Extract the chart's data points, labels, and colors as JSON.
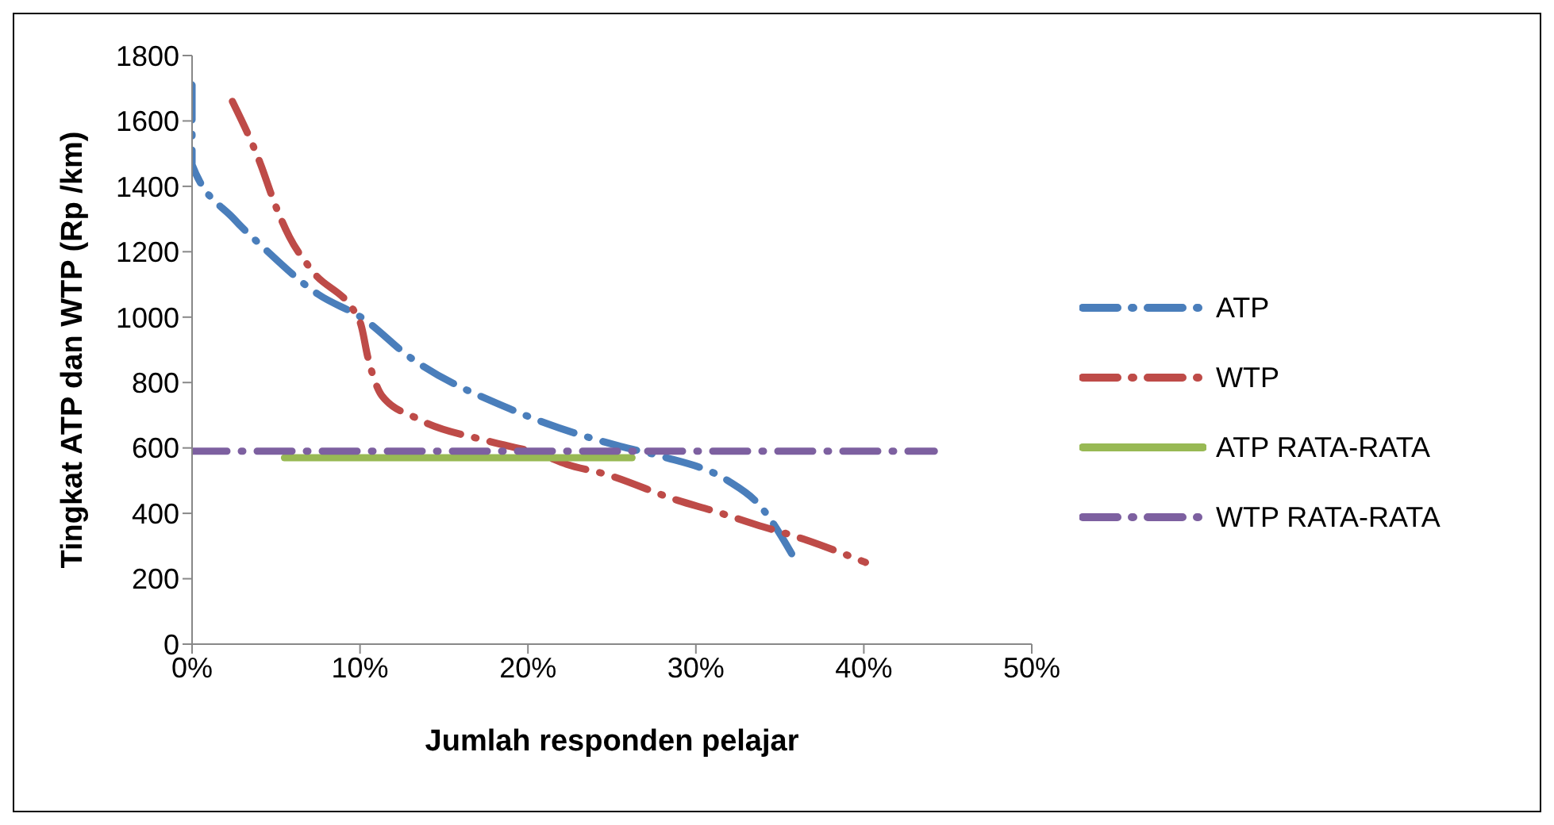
{
  "chart_data": {
    "type": "line",
    "xlabel": "Jumlah responden pelajar",
    "ylabel": "Tingkat ATP dan WTP (Rp /km)",
    "xlim": [
      0,
      50
    ],
    "xticks": [
      {
        "value": 0,
        "label": "0%"
      },
      {
        "value": 10,
        "label": "10%"
      },
      {
        "value": 20,
        "label": "20%"
      },
      {
        "value": 30,
        "label": "30%"
      },
      {
        "value": 40,
        "label": "40%"
      },
      {
        "value": 50,
        "label": "50%"
      }
    ],
    "ylim": [
      0,
      1800
    ],
    "yticks": [
      0,
      200,
      400,
      600,
      800,
      1000,
      1200,
      1400,
      1600,
      1800
    ],
    "grid": false,
    "legend": "right",
    "marker": "none",
    "series": [
      {
        "name": "ATP",
        "color": "#4a7ebb",
        "line_style": "dashed",
        "x": [
          0,
          0,
          2.5,
          4.2,
          7.5,
          10.2,
          12.9,
          18.9,
          21.1,
          25.5,
          27.9,
          31.9,
          33.7,
          36.0
        ],
        "values": [
          1710,
          1466,
          1300,
          1215,
          1070,
          995,
          880,
          720,
          675,
          605,
          575,
          500,
          430,
          250
        ]
      },
      {
        "name": "WTP",
        "color": "#be4b48",
        "line_style": "dashed",
        "x": [
          2.4,
          4.1,
          4.9,
          5.8,
          7.1,
          10.0,
          10.5,
          11.3,
          13.4,
          17.7,
          20.8,
          22.3,
          24.6,
          28.9,
          31.2,
          33.6,
          35.9,
          40.1
        ],
        "values": [
          1660,
          1465,
          1350,
          1245,
          1145,
          985,
          870,
          760,
          690,
          620,
          580,
          550,
          520,
          440,
          405,
          365,
          330,
          250
        ]
      },
      {
        "name": "ATP RATA-RATA",
        "color": "#98b954",
        "line_style": "solid",
        "x": [
          5.5,
          26.2
        ],
        "values": [
          570,
          570
        ]
      },
      {
        "name": "WTP RATA-RATA",
        "color": "#7d60a0",
        "line_style": "dashed",
        "x": [
          0,
          44.2
        ],
        "values": [
          590,
          590
        ]
      }
    ]
  }
}
